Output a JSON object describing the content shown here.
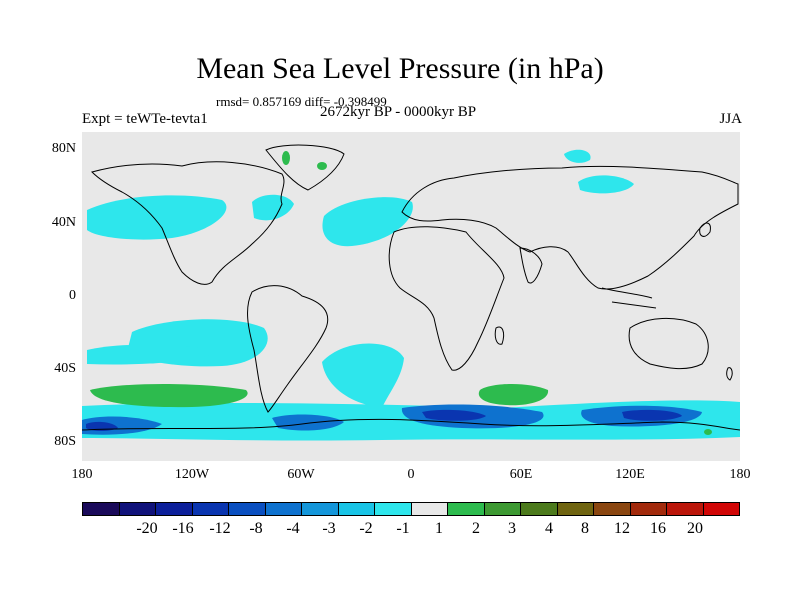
{
  "title": "Mean Sea Level Pressure (in hPa)",
  "stats": "rmsd= 0.857169 diff= -0.398499",
  "experiment": "Expt = teWTe-tevta1",
  "period": "2672kyr BP - 0000kyr BP",
  "season": "JJA",
  "lat_labels": [
    "80N",
    "40N",
    "0",
    "40S",
    "80S"
  ],
  "lon_labels": [
    "180",
    "120W",
    "60W",
    "0",
    "60E",
    "120E",
    "180"
  ],
  "colorbar": {
    "labels": [
      "-20",
      "-16",
      "-12",
      "-8",
      "-4",
      "-3",
      "-2",
      "-1",
      "1",
      "2",
      "3",
      "4",
      "8",
      "12",
      "16",
      "20"
    ],
    "colors": [
      "#1a0a5a",
      "#10127a",
      "#0c1f9a",
      "#0a35b0",
      "#0a4fc0",
      "#0e72cf",
      "#1496da",
      "#19c4e6",
      "#2ee6ec",
      "#e8e8e8",
      "#2dbb4e",
      "#3d9932",
      "#4c7a1c",
      "#6f6410",
      "#8a4610",
      "#a22a0c",
      "#bb160a",
      "#d10606"
    ]
  }
}
